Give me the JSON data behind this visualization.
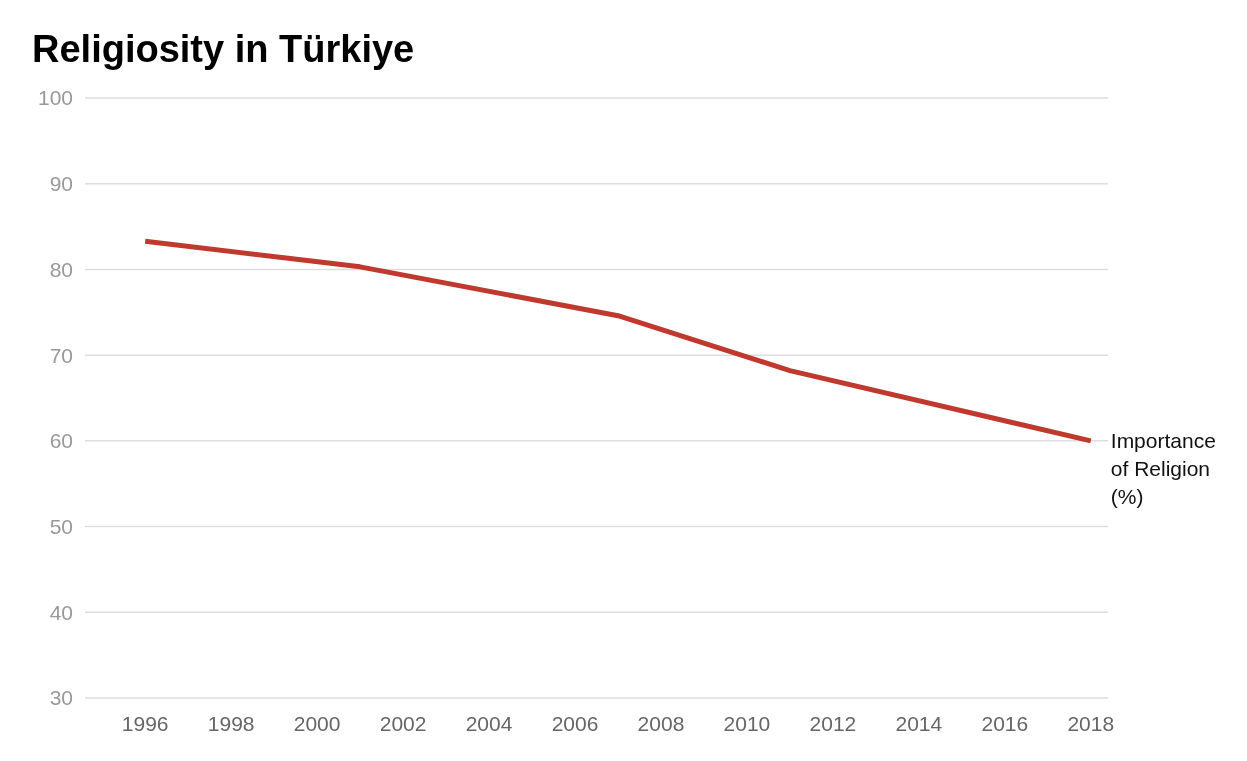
{
  "chart_data": {
    "type": "line",
    "title": "Religiosity in Türkiye",
    "x": [
      1996,
      2001,
      2007,
      2011,
      2018
    ],
    "series": [
      {
        "name": "Importance of Religion (%)",
        "color": "#c0392f",
        "values": [
          83.3,
          80.3,
          74.6,
          68.2,
          60.0
        ]
      }
    ],
    "xlim": [
      1994.6,
      2018.4
    ],
    "xticks": [
      1996,
      1998,
      2000,
      2002,
      2004,
      2006,
      2008,
      2010,
      2012,
      2014,
      2016,
      2018
    ],
    "ylim": [
      30,
      100
    ],
    "yticks": [
      30,
      40,
      50,
      60,
      70,
      80,
      90,
      100
    ],
    "grid": "y",
    "legend": false
  }
}
